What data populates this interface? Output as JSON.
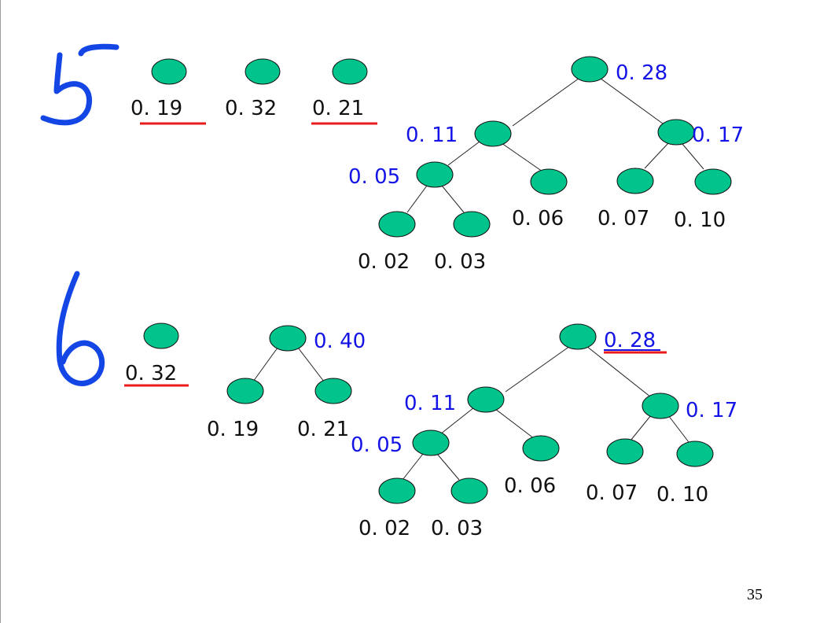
{
  "colors": {
    "node_fill": "#00c48c",
    "node_stroke": "#111111",
    "edge": "#222222",
    "leaf_label": "#111111",
    "internal_label": "#1414e6",
    "underline": "#e81c1c",
    "handwriting": "#1446e6"
  },
  "page_number": "35",
  "step5": {
    "handwritten_step": "5",
    "singles": [
      {
        "label": "0. 19",
        "underlined": true
      },
      {
        "label": "0. 32",
        "underlined": false
      },
      {
        "label": "0. 21",
        "underlined": true
      }
    ],
    "tree": {
      "root": "0. 28",
      "left": "0. 11",
      "right": "0. 17",
      "left_left": "0. 05",
      "left_right": "0. 06",
      "right_left": "0. 07",
      "right_right": "0. 10",
      "leaf_a": "0. 02",
      "leaf_b": "0. 03"
    }
  },
  "step6": {
    "handwritten_step": "6",
    "single": {
      "label": "0. 32",
      "underlined": true
    },
    "small_tree": {
      "root": "0. 40",
      "left": "0. 19",
      "right": "0. 21"
    },
    "tree": {
      "root": "0. 28",
      "root_underlined": true,
      "left": "0. 11",
      "right": "0. 17",
      "left_left": "0. 05",
      "left_right": "0. 06",
      "right_left": "0. 07",
      "right_right": "0. 10",
      "leaf_a": "0. 02",
      "leaf_b": "0. 03"
    }
  }
}
